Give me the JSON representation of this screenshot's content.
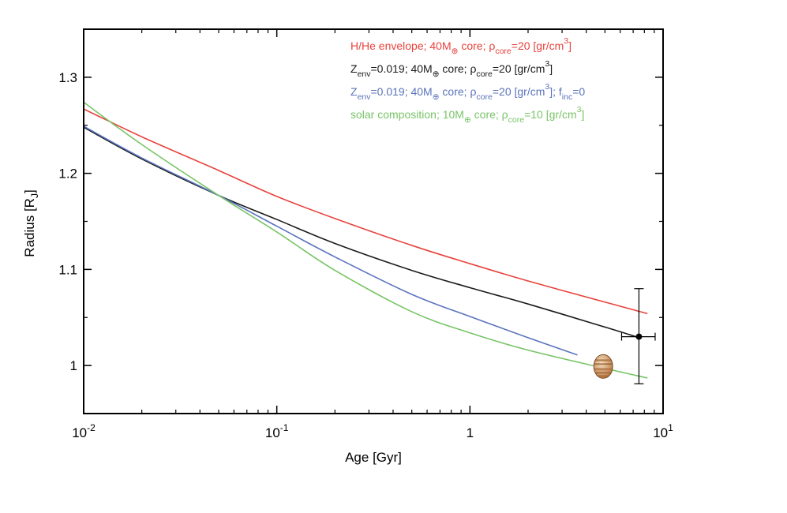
{
  "chart_data": {
    "type": "line",
    "title": "",
    "xlabel": "Age [Gyr]",
    "ylabel": "Radius [R",
    "ylabel_sub": "J",
    "ylabel_end": "]",
    "xscale": "log",
    "xlim": [
      0.01,
      10
    ],
    "ylim": [
      0.95,
      1.35
    ],
    "grid": false,
    "legend_placement": "top-right",
    "x_ticks": [
      {
        "value": 0.01,
        "base": "10",
        "exp": "-2"
      },
      {
        "value": 0.1,
        "base": "10",
        "exp": "-1"
      },
      {
        "value": 1,
        "base": "1",
        "exp": ""
      },
      {
        "value": 10,
        "base": "10",
        "exp": "1"
      }
    ],
    "y_ticks": [
      {
        "value": 1.0,
        "label": "1"
      },
      {
        "value": 1.1,
        "label": "1.1"
      },
      {
        "value": 1.2,
        "label": "1.2"
      },
      {
        "value": 1.3,
        "label": "1.3"
      }
    ],
    "series": [
      {
        "name": "H/He envelope; 40M⊕ core; ρcore=20 [gr/cm3]",
        "color": "#e8423c",
        "legend_parts": [
          {
            "t": "H/He envelope; 40M",
            "s": ""
          },
          {
            "t": "⊕",
            "s": "sub"
          },
          {
            "t": " core; ρ",
            "s": ""
          },
          {
            "t": "core",
            "s": "sub"
          },
          {
            "t": "=20 [gr/cm",
            "s": ""
          },
          {
            "t": "3",
            "s": "sup"
          },
          {
            "t": "]",
            "s": ""
          }
        ],
        "x": [
          0.01,
          0.02,
          0.05,
          0.1,
          0.2,
          0.5,
          1,
          2,
          5,
          8.3
        ],
        "y": [
          1.267,
          1.238,
          1.203,
          1.176,
          1.153,
          1.125,
          1.106,
          1.088,
          1.066,
          1.054
        ]
      },
      {
        "name": "Zenv=0.019; 40M⊕ core; ρcore=20 [gr/cm3]",
        "color": "#1a1a1a",
        "legend_parts": [
          {
            "t": "Z",
            "s": ""
          },
          {
            "t": "env",
            "s": "sub"
          },
          {
            "t": "=0.019; 40M",
            "s": ""
          },
          {
            "t": "⊕",
            "s": "sub"
          },
          {
            "t": " core; ρ",
            "s": ""
          },
          {
            "t": "core",
            "s": "sub"
          },
          {
            "t": "=20 [gr/cm",
            "s": ""
          },
          {
            "t": "3",
            "s": "sup"
          },
          {
            "t": "]",
            "s": ""
          }
        ],
        "x": [
          0.01,
          0.02,
          0.05,
          0.1,
          0.2,
          0.5,
          1,
          2,
          5,
          7.5
        ],
        "y": [
          1.248,
          1.215,
          1.177,
          1.152,
          1.127,
          1.099,
          1.081,
          1.064,
          1.04,
          1.029
        ]
      },
      {
        "name": "Zenv=0.019; 40M⊕ core; ρcore=20 [gr/cm3]; finc=0",
        "color": "#5a73bc",
        "legend_parts": [
          {
            "t": "Z",
            "s": ""
          },
          {
            "t": "env",
            "s": "sub"
          },
          {
            "t": "=0.019; 40M",
            "s": ""
          },
          {
            "t": "⊕",
            "s": "sub"
          },
          {
            "t": " core; ρ",
            "s": ""
          },
          {
            "t": "core",
            "s": "sub"
          },
          {
            "t": "=20 [gr/cm",
            "s": ""
          },
          {
            "t": "3",
            "s": "sup"
          },
          {
            "t": "]; f",
            "s": ""
          },
          {
            "t": "inc",
            "s": "sub"
          },
          {
            "t": "=0",
            "s": ""
          }
        ],
        "x": [
          0.01,
          0.02,
          0.05,
          0.1,
          0.2,
          0.5,
          1,
          2,
          3.6
        ],
        "y": [
          1.249,
          1.216,
          1.177,
          1.145,
          1.113,
          1.074,
          1.051,
          1.029,
          1.011
        ]
      },
      {
        "name": "solar composition; 10M⊕ core; ρcore=10 [gr/cm3]",
        "color": "#77c466",
        "legend_parts": [
          {
            "t": "solar composition; 10M",
            "s": ""
          },
          {
            "t": "⊕",
            "s": "sub"
          },
          {
            "t": " core; ρ",
            "s": ""
          },
          {
            "t": "core",
            "s": "sub"
          },
          {
            "t": "=10 [gr/cm",
            "s": ""
          },
          {
            "t": "3",
            "s": "sup"
          },
          {
            "t": "]",
            "s": ""
          }
        ],
        "x": [
          0.01,
          0.02,
          0.05,
          0.1,
          0.2,
          0.5,
          1,
          2,
          5,
          8.3
        ],
        "y": [
          1.274,
          1.23,
          1.177,
          1.139,
          1.099,
          1.056,
          1.034,
          1.016,
          0.997,
          0.987
        ]
      }
    ],
    "data_point": {
      "x": 7.5,
      "y": 1.03,
      "x_err": [
        6.1,
        9.1
      ],
      "y_err": [
        0.981,
        1.08
      ],
      "color": "#000000"
    },
    "jupiter_marker": {
      "x": 4.9,
      "y": 0.999
    }
  }
}
